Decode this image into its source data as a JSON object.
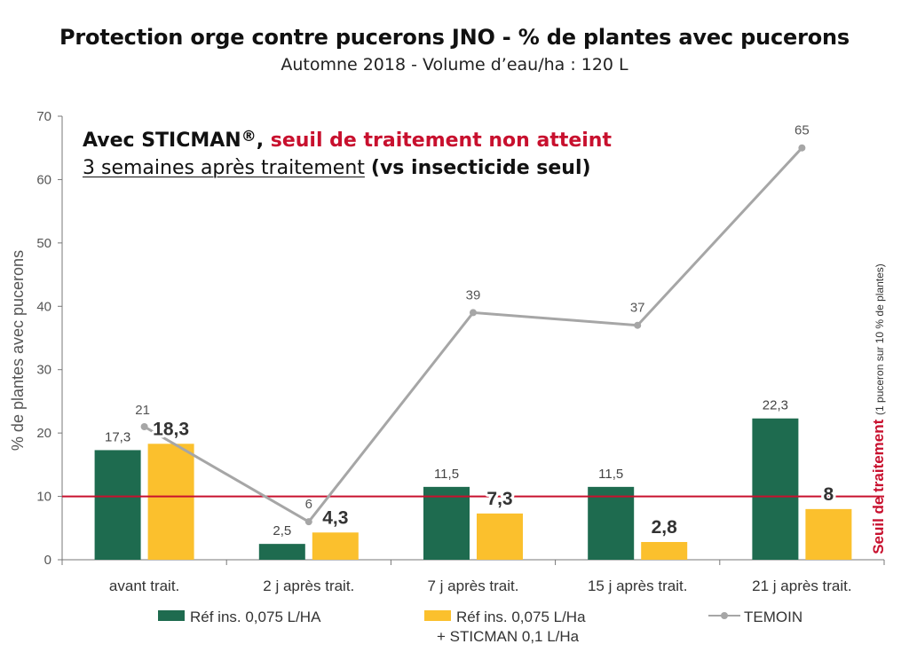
{
  "header": {
    "title": "Protection orge contre pucerons JNO - % de plantes avec pucerons",
    "subtitle": "Automne 2018 - Volume d’eau/ha : 120 L"
  },
  "annotation": {
    "line1_prefix": "Avec STICMAN",
    "line1_reg": "®",
    "line1_sep": ", ",
    "line1_red": "seuil de traitement non atteint",
    "line2_underlined": "3 semaines après traitement",
    "line2_bold": "(vs insecticide seul)"
  },
  "threshold": {
    "value": 10,
    "label_main": "Seuil de traitement",
    "label_note": "(1 puceron sur 10 % de plantes)",
    "color": "#c8102e"
  },
  "colors": {
    "green": "#1e6b4f",
    "yellow": "#fbc02d",
    "grey": "#a6a6a6",
    "red": "#c8102e"
  },
  "chart_data": {
    "type": "bar",
    "categories": [
      "avant trait.",
      "2 j après trait.",
      "7 j après trait.",
      "15 j après trait.",
      "21 j après trait."
    ],
    "series": [
      {
        "name": "Réf ins. 0,075 L/HA",
        "type": "bar",
        "color": "#1e6b4f",
        "values": [
          17.3,
          2.5,
          11.5,
          11.5,
          22.3
        ],
        "labels": [
          "17,3",
          "2,5",
          "11,5",
          "11,5",
          "22,3"
        ]
      },
      {
        "name": "Réf ins. 0,075 L/Ha + STICMAN 0,1 L/Ha",
        "type": "bar",
        "color": "#fbc02d",
        "values": [
          18.3,
          4.3,
          7.3,
          2.8,
          8
        ],
        "labels": [
          "18,3",
          "4,3",
          "7,3",
          "2,8",
          "8"
        ]
      },
      {
        "name": "TEMOIN",
        "type": "line",
        "color": "#a6a6a6",
        "values": [
          21,
          6,
          39,
          37,
          65
        ],
        "labels": [
          "21",
          "6",
          "39",
          "37",
          "65"
        ]
      }
    ],
    "ylabel": "% de plantes avec pucerons",
    "ylim": [
      0,
      70
    ],
    "yticks": [
      0,
      10,
      20,
      30,
      40,
      50,
      60,
      70
    ],
    "grid": false,
    "legend_position": "bottom"
  },
  "legend": {
    "item1": "Réf ins. 0,075 L/HA",
    "item2_line1": "Réf ins. 0,075 L/Ha",
    "item2_line2": "+ STICMAN 0,1 L/Ha",
    "item3": "TEMOIN"
  }
}
